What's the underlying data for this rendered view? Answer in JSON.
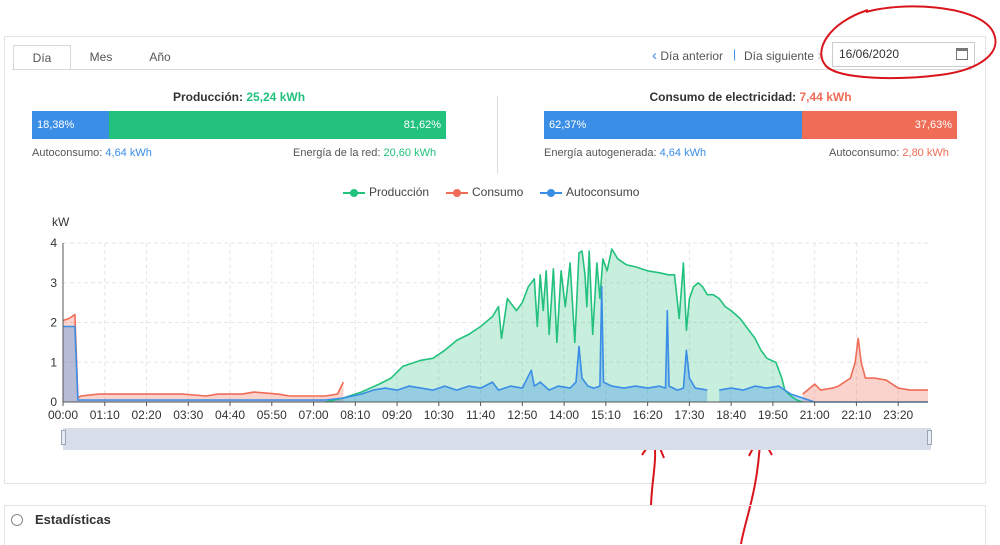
{
  "tabs": [
    "Día",
    "Mes",
    "Año"
  ],
  "nav": {
    "prev": "Día anterior",
    "separator": "|",
    "next": "Día siguiente"
  },
  "date_field": {
    "value": "16/06/2020"
  },
  "production": {
    "title_label": "Producción:",
    "title_value": "25,24 kWh",
    "self_pct": "18,38%",
    "grid_pct": "81,62%",
    "self_label": "Autoconsumo:",
    "self_value": "4,64 kWh",
    "grid_label": "Energía de la red:",
    "grid_value": "20,60 kWh"
  },
  "consumption": {
    "title_label": "Consumo de electricidad:",
    "title_value": "7,44 kWh",
    "self_pct": "62,37%",
    "grid_pct": "37,63%",
    "self_label": "Energía autogenerada:",
    "self_value": "4,64 kWh",
    "grid_label": "Autoconsumo:",
    "grid_value": "2,80 kWh"
  },
  "colors": {
    "produccion": "#22c17d",
    "consumo": "#ef6c57",
    "autoconsumo": "#3a8ee6",
    "annotation": "#d9141b"
  },
  "section2": {
    "title": "Estadísticas"
  },
  "chart_data": {
    "type": "area",
    "ylabel": "kW",
    "ylim": [
      0,
      4
    ],
    "yticks": [
      0,
      1,
      2,
      3,
      4
    ],
    "xlim": [
      0,
      1450
    ],
    "xtick_labels": [
      "00:00",
      "01:10",
      "02:20",
      "03:30",
      "04:40",
      "05:50",
      "07:00",
      "08:10",
      "09:20",
      "10:30",
      "11:40",
      "12:50",
      "14:00",
      "15:10",
      "16:20",
      "17:30",
      "18:40",
      "19:50",
      "21:00",
      "22:10",
      "23:20"
    ],
    "legend": [
      "Producción",
      "Consumo",
      "Autoconsumo"
    ],
    "legend_position": "top-center",
    "series": [
      {
        "name": "Producción",
        "color": "#22c17d",
        "points": [
          [
            440,
            0
          ],
          [
            470,
            0.1
          ],
          [
            500,
            0.25
          ],
          [
            530,
            0.45
          ],
          [
            550,
            0.6
          ],
          [
            570,
            0.9
          ],
          [
            600,
            1.05
          ],
          [
            620,
            1.1
          ],
          [
            640,
            1.3
          ],
          [
            660,
            1.55
          ],
          [
            680,
            1.7
          ],
          [
            700,
            1.9
          ],
          [
            720,
            2.15
          ],
          [
            730,
            2.4
          ],
          [
            735,
            1.6
          ],
          [
            745,
            2.6
          ],
          [
            760,
            2.3
          ],
          [
            770,
            2.5
          ],
          [
            780,
            2.9
          ],
          [
            790,
            3.1
          ],
          [
            795,
            1.9
          ],
          [
            800,
            3.2
          ],
          [
            805,
            2.3
          ],
          [
            810,
            3.3
          ],
          [
            815,
            1.7
          ],
          [
            822,
            3.35
          ],
          [
            828,
            1.5
          ],
          [
            835,
            3.3
          ],
          [
            842,
            2.4
          ],
          [
            850,
            3.5
          ],
          [
            858,
            1.5
          ],
          [
            865,
            3.75
          ],
          [
            870,
            3.8
          ],
          [
            875,
            3.2
          ],
          [
            878,
            2.4
          ],
          [
            882,
            3.8
          ],
          [
            888,
            1.7
          ],
          [
            895,
            3.5
          ],
          [
            900,
            2.6
          ],
          [
            905,
            3.6
          ],
          [
            912,
            3.3
          ],
          [
            920,
            3.85
          ],
          [
            930,
            3.6
          ],
          [
            945,
            3.45
          ],
          [
            960,
            3.4
          ],
          [
            980,
            3.3
          ],
          [
            1000,
            3.25
          ],
          [
            1015,
            3.2
          ],
          [
            1025,
            3.2
          ],
          [
            1033,
            2.1
          ],
          [
            1040,
            3.5
          ],
          [
            1045,
            1.8
          ],
          [
            1050,
            2.6
          ],
          [
            1057,
            2.9
          ],
          [
            1065,
            3.0
          ],
          [
            1072,
            2.9
          ],
          [
            1080,
            2.7
          ],
          [
            1090,
            2.7
          ],
          [
            1100,
            2.6
          ],
          [
            1110,
            2.4
          ],
          [
            1120,
            2.3
          ],
          [
            1135,
            2.1
          ],
          [
            1145,
            1.9
          ],
          [
            1160,
            1.6
          ],
          [
            1170,
            1.3
          ],
          [
            1180,
            1.1
          ],
          [
            1195,
            1.0
          ],
          [
            1200,
            0.8
          ],
          [
            1205,
            0.6
          ],
          [
            1210,
            0.3
          ],
          [
            1220,
            0.15
          ],
          [
            1230,
            0.05
          ],
          [
            1240,
            0
          ]
        ],
        "gaps": [
          [
            1133,
            1138
          ],
          [
            1215,
            1235
          ]
        ]
      },
      {
        "name": "Consumo",
        "color": "#ef6c57",
        "points": [
          [
            0,
            2.05
          ],
          [
            10,
            2.1
          ],
          [
            20,
            2.2
          ],
          [
            25,
            0.1
          ],
          [
            30,
            0.15
          ],
          [
            60,
            0.2
          ],
          [
            100,
            0.2
          ],
          [
            150,
            0.2
          ],
          [
            200,
            0.2
          ],
          [
            240,
            0.15
          ],
          [
            260,
            0.2
          ],
          [
            300,
            0.2
          ],
          [
            320,
            0.25
          ],
          [
            360,
            0.2
          ],
          [
            380,
            0.15
          ],
          [
            400,
            0.15
          ],
          [
            440,
            0.15
          ],
          [
            460,
            0.2
          ],
          [
            470,
            0.5
          ],
          [
            1240,
            0.2
          ],
          [
            1260,
            0.45
          ],
          [
            1270,
            0.3
          ],
          [
            1290,
            0.35
          ],
          [
            1300,
            0.4
          ],
          [
            1310,
            0.5
          ],
          [
            1320,
            0.6
          ],
          [
            1328,
            1.0
          ],
          [
            1333,
            1.6
          ],
          [
            1338,
            1.0
          ],
          [
            1345,
            0.6
          ],
          [
            1360,
            0.6
          ],
          [
            1380,
            0.55
          ],
          [
            1390,
            0.45
          ],
          [
            1400,
            0.35
          ],
          [
            1420,
            0.3
          ],
          [
            1440,
            0.3
          ],
          [
            1450,
            0.3
          ]
        ],
        "gaps": [
          [
            900,
            1240
          ]
        ]
      },
      {
        "name": "Autoconsumo",
        "color": "#3a8ee6",
        "points": [
          [
            0,
            1.9
          ],
          [
            20,
            1.9
          ],
          [
            25,
            0.05
          ],
          [
            440,
            0.05
          ],
          [
            470,
            0.1
          ],
          [
            500,
            0.2
          ],
          [
            520,
            0.3
          ],
          [
            540,
            0.35
          ],
          [
            560,
            0.3
          ],
          [
            580,
            0.4
          ],
          [
            600,
            0.35
          ],
          [
            620,
            0.3
          ],
          [
            640,
            0.4
          ],
          [
            660,
            0.3
          ],
          [
            680,
            0.4
          ],
          [
            700,
            0.35
          ],
          [
            720,
            0.5
          ],
          [
            730,
            0.3
          ],
          [
            750,
            0.4
          ],
          [
            770,
            0.35
          ],
          [
            785,
            0.8
          ],
          [
            790,
            0.4
          ],
          [
            800,
            0.5
          ],
          [
            815,
            0.3
          ],
          [
            830,
            0.4
          ],
          [
            850,
            0.35
          ],
          [
            860,
            0.5
          ],
          [
            865,
            1.4
          ],
          [
            870,
            0.6
          ],
          [
            880,
            0.4
          ],
          [
            890,
            0.35
          ],
          [
            900,
            0.4
          ],
          [
            903,
            2.9
          ],
          [
            906,
            0.5
          ],
          [
            920,
            0.4
          ],
          [
            940,
            0.35
          ],
          [
            960,
            0.4
          ],
          [
            980,
            0.35
          ],
          [
            1000,
            0.4
          ],
          [
            1010,
            0.35
          ],
          [
            1013,
            2.3
          ],
          [
            1016,
            0.4
          ],
          [
            1030,
            0.3
          ],
          [
            1040,
            0.35
          ],
          [
            1045,
            1.3
          ],
          [
            1050,
            0.6
          ],
          [
            1060,
            0.35
          ],
          [
            1080,
            0.3
          ],
          [
            1100,
            0.3
          ],
          [
            1120,
            0.35
          ],
          [
            1140,
            0.3
          ],
          [
            1160,
            0.4
          ],
          [
            1180,
            0.35
          ],
          [
            1200,
            0.4
          ],
          [
            1210,
            0.3
          ],
          [
            1220,
            0.2
          ],
          [
            1240,
            0.1
          ],
          [
            1260,
            0
          ],
          [
            1450,
            0
          ]
        ],
        "gaps": [
          [
            1095,
            1100
          ],
          [
            1215,
            1235
          ]
        ]
      }
    ]
  }
}
